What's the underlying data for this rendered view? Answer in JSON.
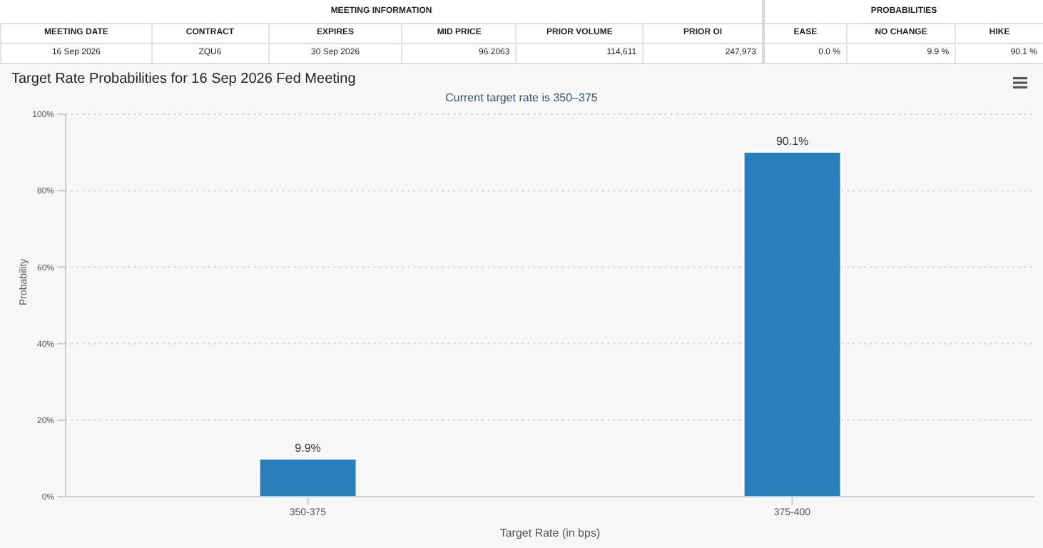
{
  "chart_data": {
    "type": "bar",
    "title": "Target Rate Probabilities for 16 Sep 2026 Fed Meeting",
    "subtitle": "Current target rate is 350–375",
    "xlabel": "Target Rate (in bps)",
    "ylabel": "Probability",
    "categories": [
      "350-375",
      "375-400"
    ],
    "values": [
      9.9,
      90.1
    ],
    "color": "#2a7fba",
    "value_labels": [
      "9.9%",
      "90.1%"
    ],
    "ylim": [
      0,
      100
    ],
    "yticks": [
      {
        "value": 0,
        "label": "0%"
      },
      {
        "value": 20,
        "label": "20%"
      },
      {
        "value": 40,
        "label": "40%"
      },
      {
        "value": 60,
        "label": "60%"
      },
      {
        "value": 80,
        "label": "80%"
      },
      {
        "value": 100,
        "label": "100%"
      }
    ],
    "grid": "y",
    "legend": false,
    "annotations": [
      "MEETING INFORMATION",
      "PROBABILITIES",
      "MEETING DATE",
      "CONTRACT",
      "EXPIRES",
      "MID PRICE",
      "PRIOR VOLUME",
      "PRIOR OI",
      "EASE",
      "NO CHANGE",
      "HIKE",
      "16 Sep 2026",
      "ZQU6",
      "30 Sep 2026",
      "96.2063",
      "114,611",
      "247,973",
      "0.0 %",
      "9.9 %",
      "90.1 %"
    ]
  }
}
